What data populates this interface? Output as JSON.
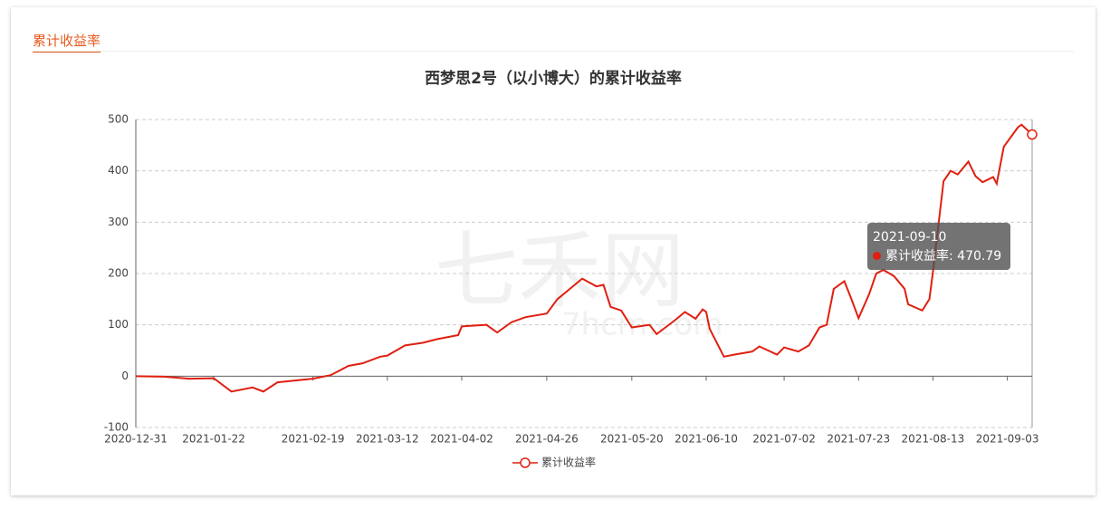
{
  "header": {
    "title": "累计收益率"
  },
  "watermark": {
    "text": "七禾网",
    "subtext": "7hcm.com"
  },
  "chart_data": {
    "type": "line",
    "title": "西梦思2号（以小博大）的累计收益率",
    "x": [
      "2020-12-31",
      "2021-01-08",
      "2021-01-15",
      "2021-01-22",
      "2021-01-27",
      "2021-02-02",
      "2021-02-05",
      "2021-02-09",
      "2021-02-19",
      "2021-02-24",
      "2021-03-01",
      "2021-03-05",
      "2021-03-10",
      "2021-03-12",
      "2021-03-17",
      "2021-03-22",
      "2021-03-26",
      "2021-04-01",
      "2021-04-02",
      "2021-04-09",
      "2021-04-12",
      "2021-04-16",
      "2021-04-20",
      "2021-04-26",
      "2021-04-29",
      "2021-05-06",
      "2021-05-10",
      "2021-05-12",
      "2021-05-14",
      "2021-05-17",
      "2021-05-20",
      "2021-05-25",
      "2021-05-27",
      "2021-06-01",
      "2021-06-04",
      "2021-06-07",
      "2021-06-09",
      "2021-06-10",
      "2021-06-11",
      "2021-06-15",
      "2021-06-18",
      "2021-06-23",
      "2021-06-25",
      "2021-06-30",
      "2021-07-02",
      "2021-07-06",
      "2021-07-09",
      "2021-07-12",
      "2021-07-14",
      "2021-07-16",
      "2021-07-19",
      "2021-07-21",
      "2021-07-23",
      "2021-07-26",
      "2021-07-28",
      "2021-07-30",
      "2021-08-02",
      "2021-08-05",
      "2021-08-06",
      "2021-08-10",
      "2021-08-12",
      "2021-08-13",
      "2021-08-16",
      "2021-08-18",
      "2021-08-20",
      "2021-08-23",
      "2021-08-25",
      "2021-08-27",
      "2021-08-30",
      "2021-08-31",
      "2021-09-02",
      "2021-09-06",
      "2021-09-07",
      "2021-09-10"
    ],
    "series": [
      {
        "name": "累计收益率",
        "color": "#e01f10",
        "values": [
          0,
          -1,
          -5,
          -4,
          -30,
          -22,
          -30,
          -12,
          -5,
          2,
          20,
          25,
          38,
          40,
          60,
          65,
          72,
          80,
          97,
          100,
          85,
          105,
          115,
          122,
          150,
          190,
          175,
          178,
          135,
          128,
          95,
          100,
          82,
          108,
          125,
          112,
          130,
          125,
          92,
          38,
          42,
          48,
          58,
          42,
          56,
          48,
          60,
          95,
          100,
          170,
          185,
          150,
          113,
          160,
          200,
          207,
          195,
          170,
          140,
          128,
          150,
          203,
          380,
          400,
          393,
          418,
          390,
          378,
          388,
          375,
          447,
          485,
          490,
          470.79
        ]
      }
    ],
    "xlim": [
      "2020-12-31",
      "2021-09-10"
    ],
    "xticks": [
      "2020-12-31",
      "2021-01-22",
      "2021-02-19",
      "2021-03-12",
      "2021-04-02",
      "2021-04-26",
      "2021-05-20",
      "2021-06-10",
      "2021-07-02",
      "2021-07-23",
      "2021-08-13",
      "2021-09-03"
    ],
    "ylim": [
      -100,
      500
    ],
    "yticks": [
      -100,
      0,
      100,
      200,
      300,
      400,
      500
    ],
    "grid": true,
    "tooltip": {
      "x": "2021-09-10"
    }
  }
}
